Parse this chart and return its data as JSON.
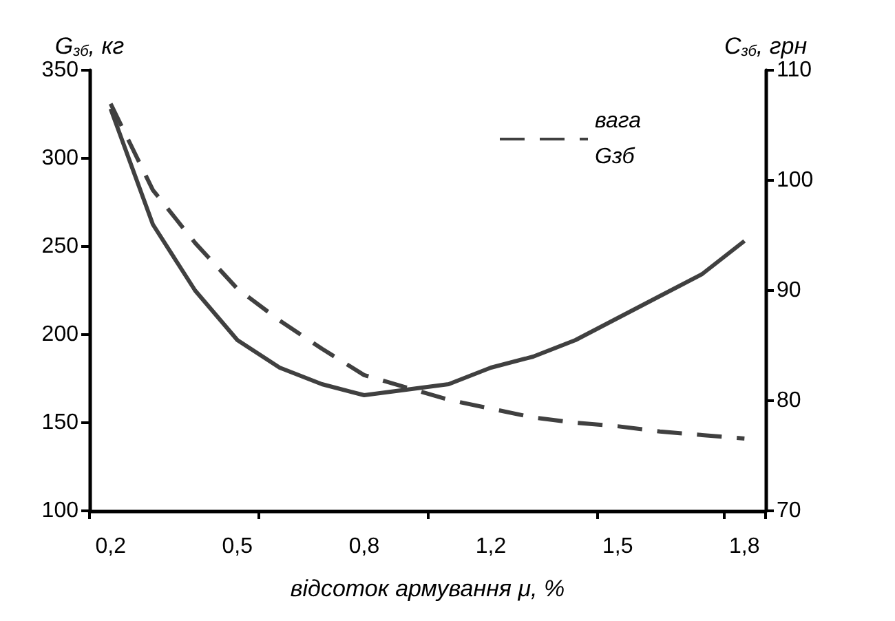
{
  "chart_data": {
    "type": "line",
    "xlabel": "відсоток армування μ, %",
    "ylabel": "G$_{зб}$, кг",
    "y2label": "C$_{зб}$, грн",
    "categories": [
      "0,2",
      null,
      null,
      "0,5",
      null,
      null,
      "0,8",
      null,
      null,
      "1,2",
      null,
      null,
      "1,5",
      null,
      null,
      "1,8"
    ],
    "series": [
      {
        "name": "вага Gзб",
        "color": "#404040",
        "line_style": "dashed",
        "values": [
          331,
          282,
          252,
          226,
          208,
          192,
          177,
          170,
          163,
          158,
          153,
          150,
          148,
          145,
          143,
          141
        ]
      },
      {
        "color": "#404040",
        "line_style": "solid",
        "axis": "y2",
        "values": [
          106.5,
          96,
          90,
          85.5,
          83,
          81.5,
          80.5,
          81,
          81.5,
          83,
          84,
          85.5,
          87.5,
          89.5,
          91.5,
          94.5
        ]
      }
    ],
    "ylim": [
      100,
      350
    ],
    "yticks": [
      100,
      150,
      200,
      250,
      300,
      350
    ],
    "y2lim": [
      70,
      110
    ],
    "y2ticks": [
      70,
      80,
      90,
      100,
      110
    ],
    "grid": false,
    "legend": "top right",
    "marker": "none"
  }
}
